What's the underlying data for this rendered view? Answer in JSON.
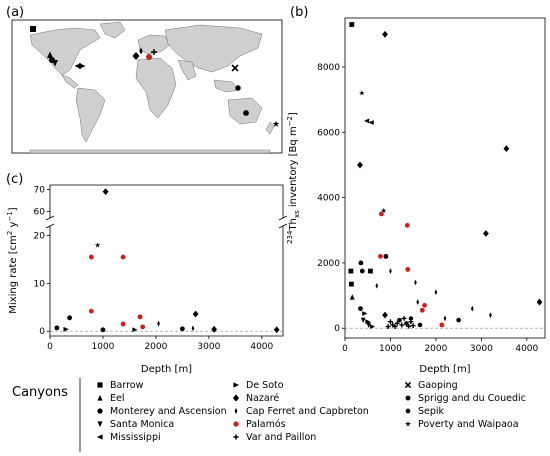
{
  "panels": {
    "a": "(a)",
    "b": "(b)",
    "c": "(c)"
  },
  "colors": {
    "palamos": "#cc1f1a",
    "marker": "#000000",
    "land": "#cfcfcf",
    "frame": "#000000"
  },
  "chart_data": [
    {
      "panel": "a",
      "type": "map",
      "markers": [
        {
          "site": "Barrow",
          "marker": "square"
        },
        {
          "site": "Eel",
          "marker": "triangle-up"
        },
        {
          "site": "Monterey and Ascension",
          "marker": "circle"
        },
        {
          "site": "Santa Monica",
          "marker": "triangle-down"
        },
        {
          "site": "Mississippi",
          "marker": "triangle-left"
        },
        {
          "site": "De Soto",
          "marker": "triangle-right"
        },
        {
          "site": "Nazaré",
          "marker": "diamond"
        },
        {
          "site": "Cap Ferret and Capbreton",
          "marker": "thin-diamond"
        },
        {
          "site": "Palamós",
          "marker": "circle-red"
        },
        {
          "site": "Var and Paillon",
          "marker": "plus"
        },
        {
          "site": "Gaoping",
          "marker": "x"
        },
        {
          "site": "Sprigg and du Couedic",
          "marker": "octagon"
        },
        {
          "site": "Sepik",
          "marker": "hexagon"
        },
        {
          "site": "Poverty and Waipaoa",
          "marker": "star"
        }
      ]
    },
    {
      "panel": "b",
      "type": "scatter",
      "xlabel": "Depth [m]",
      "ylabel_main": "Th",
      "ylabel_sup": "234",
      "ylabel_sub": "xs",
      "ylabel_rest": " inventory [Bq m",
      "ylabel_unit_sup": "−2",
      "ylabel_end": "]",
      "xlim": [
        0,
        4400
      ],
      "ylim": [
        -300,
        9500
      ],
      "xticks": [
        0,
        1000,
        2000,
        3000,
        4000
      ],
      "yticks": [
        0,
        2000,
        4000,
        6000,
        8000
      ],
      "points": [
        {
          "x": 150,
          "y": 9300,
          "m": "square"
        },
        {
          "x": 130,
          "y": 1750,
          "m": "square"
        },
        {
          "x": 140,
          "y": 1350,
          "m": "square"
        },
        {
          "x": 560,
          "y": 1750,
          "m": "square"
        },
        {
          "x": 160,
          "y": 950,
          "m": "triangle-up"
        },
        {
          "x": 380,
          "y": 1750,
          "m": "circle"
        },
        {
          "x": 350,
          "y": 2000,
          "m": "circle"
        },
        {
          "x": 900,
          "y": 2200,
          "m": "circle"
        },
        {
          "x": 340,
          "y": 600,
          "m": "circle"
        },
        {
          "x": 400,
          "y": 250,
          "m": "triangle-down"
        },
        {
          "x": 520,
          "y": 100,
          "m": "triangle-down"
        },
        {
          "x": 580,
          "y": 6300,
          "m": "triangle-left"
        },
        {
          "x": 480,
          "y": 6350,
          "m": "triangle-left"
        },
        {
          "x": 430,
          "y": 450,
          "m": "triangle-right"
        },
        {
          "x": 500,
          "y": 200,
          "m": "triangle-right"
        },
        {
          "x": 600,
          "y": 50,
          "m": "triangle-right"
        },
        {
          "x": 880,
          "y": 9000,
          "m": "diamond"
        },
        {
          "x": 330,
          "y": 5000,
          "m": "diamond"
        },
        {
          "x": 3550,
          "y": 5500,
          "m": "diamond"
        },
        {
          "x": 3100,
          "y": 2900,
          "m": "diamond"
        },
        {
          "x": 4280,
          "y": 800,
          "m": "diamond"
        },
        {
          "x": 880,
          "y": 400,
          "m": "diamond"
        },
        {
          "x": 1000,
          "y": 1750,
          "m": "thin-diamond"
        },
        {
          "x": 1550,
          "y": 1400,
          "m": "thin-diamond"
        },
        {
          "x": 2000,
          "y": 1100,
          "m": "thin-diamond"
        },
        {
          "x": 2800,
          "y": 600,
          "m": "thin-diamond"
        },
        {
          "x": 3200,
          "y": 400,
          "m": "thin-diamond"
        },
        {
          "x": 700,
          "y": 1300,
          "m": "thin-diamond"
        },
        {
          "x": 1600,
          "y": 800,
          "m": "thin-diamond"
        },
        {
          "x": 2200,
          "y": 300,
          "m": "thin-diamond"
        },
        {
          "x": 800,
          "y": 3500,
          "m": "palamos"
        },
        {
          "x": 780,
          "y": 2200,
          "m": "palamos"
        },
        {
          "x": 1370,
          "y": 3150,
          "m": "palamos"
        },
        {
          "x": 1380,
          "y": 1800,
          "m": "palamos"
        },
        {
          "x": 1750,
          "y": 700,
          "m": "palamos"
        },
        {
          "x": 1700,
          "y": 550,
          "m": "palamos"
        },
        {
          "x": 2130,
          "y": 100,
          "m": "palamos"
        },
        {
          "x": 1000,
          "y": 200,
          "m": "plus"
        },
        {
          "x": 1050,
          "y": 100,
          "m": "plus"
        },
        {
          "x": 1100,
          "y": 50,
          "m": "plus"
        },
        {
          "x": 1150,
          "y": 150,
          "m": "plus"
        },
        {
          "x": 1250,
          "y": 100,
          "m": "plus"
        },
        {
          "x": 1400,
          "y": 60,
          "m": "plus"
        },
        {
          "x": 1450,
          "y": 200,
          "m": "plus"
        },
        {
          "x": 1500,
          "y": 80,
          "m": "plus"
        },
        {
          "x": 950,
          "y": 50,
          "m": "plus"
        },
        {
          "x": 1300,
          "y": 300,
          "m": "plus"
        },
        {
          "x": 1200,
          "y": 250,
          "m": "octagon"
        },
        {
          "x": 1650,
          "y": 100,
          "m": "octagon"
        },
        {
          "x": 2500,
          "y": 250,
          "m": "octagon"
        },
        {
          "x": 1450,
          "y": 300,
          "m": "hexagon"
        },
        {
          "x": 1350,
          "y": 150,
          "m": "hexagon"
        },
        {
          "x": 370,
          "y": 7200,
          "m": "star"
        },
        {
          "x": 850,
          "y": 3600,
          "m": "star"
        }
      ]
    },
    {
      "panel": "c",
      "type": "scatter",
      "xlabel": "Depth [m]",
      "ylabel_main": "Mixing rate [cm",
      "ylabel_sup1": "2",
      "ylabel_mid": " y",
      "ylabel_sup2": "−1",
      "ylabel_end": "]",
      "xlim": [
        0,
        4400
      ],
      "xticks": [
        0,
        1000,
        2000,
        3000,
        4000
      ],
      "yticks_lower": [
        0,
        10,
        20
      ],
      "yticks_upper": [
        60,
        70
      ],
      "ylim_lower": [
        -1,
        22
      ],
      "ylim_upper": [
        57,
        72
      ],
      "points": [
        {
          "x": 1050,
          "y": 69,
          "m": "diamond"
        },
        {
          "x": 900,
          "y": 18,
          "m": "star"
        },
        {
          "x": 780,
          "y": 15.5,
          "m": "palamos"
        },
        {
          "x": 1380,
          "y": 15.5,
          "m": "palamos"
        },
        {
          "x": 780,
          "y": 4.2,
          "m": "palamos"
        },
        {
          "x": 1700,
          "y": 3.0,
          "m": "palamos"
        },
        {
          "x": 1380,
          "y": 1.5,
          "m": "palamos"
        },
        {
          "x": 1750,
          "y": 0.9,
          "m": "palamos"
        },
        {
          "x": 370,
          "y": 2.8,
          "m": "circle"
        },
        {
          "x": 2050,
          "y": 1.6,
          "m": "thin-diamond"
        },
        {
          "x": 2750,
          "y": 3.6,
          "m": "diamond"
        },
        {
          "x": 130,
          "y": 0.7,
          "m": "circle"
        },
        {
          "x": 300,
          "y": 0.4,
          "m": "triangle-right"
        },
        {
          "x": 1000,
          "y": 0.3,
          "m": "circle"
        },
        {
          "x": 1600,
          "y": 0.3,
          "m": "triangle-right"
        },
        {
          "x": 2500,
          "y": 0.5,
          "m": "circle"
        },
        {
          "x": 2700,
          "y": 0.6,
          "m": "thin-diamond"
        },
        {
          "x": 3100,
          "y": 0.4,
          "m": "diamond"
        },
        {
          "x": 4280,
          "y": 0.3,
          "m": "diamond"
        }
      ]
    }
  ],
  "legend": {
    "title": "Canyons",
    "items": [
      {
        "label": "Barrow",
        "m": "square"
      },
      {
        "label": "Eel",
        "m": "triangle-up"
      },
      {
        "label": "Monterey and Ascension",
        "m": "circle"
      },
      {
        "label": "Santa Monica",
        "m": "triangle-down"
      },
      {
        "label": "Mississippi",
        "m": "triangle-left"
      },
      {
        "label": "De Soto",
        "m": "triangle-right"
      },
      {
        "label": "Nazaré",
        "m": "diamond"
      },
      {
        "label": "Cap Ferret and Capbreton",
        "m": "thin-diamond"
      },
      {
        "label": "Palamós",
        "m": "palamos"
      },
      {
        "label": "Var and Paillon",
        "m": "plus"
      },
      {
        "label": "Gaoping",
        "m": "x"
      },
      {
        "label": "Sprigg and du Couedic",
        "m": "octagon"
      },
      {
        "label": "Sepik",
        "m": "hexagon"
      },
      {
        "label": "Poverty and Waipaoa",
        "m": "star"
      }
    ]
  }
}
